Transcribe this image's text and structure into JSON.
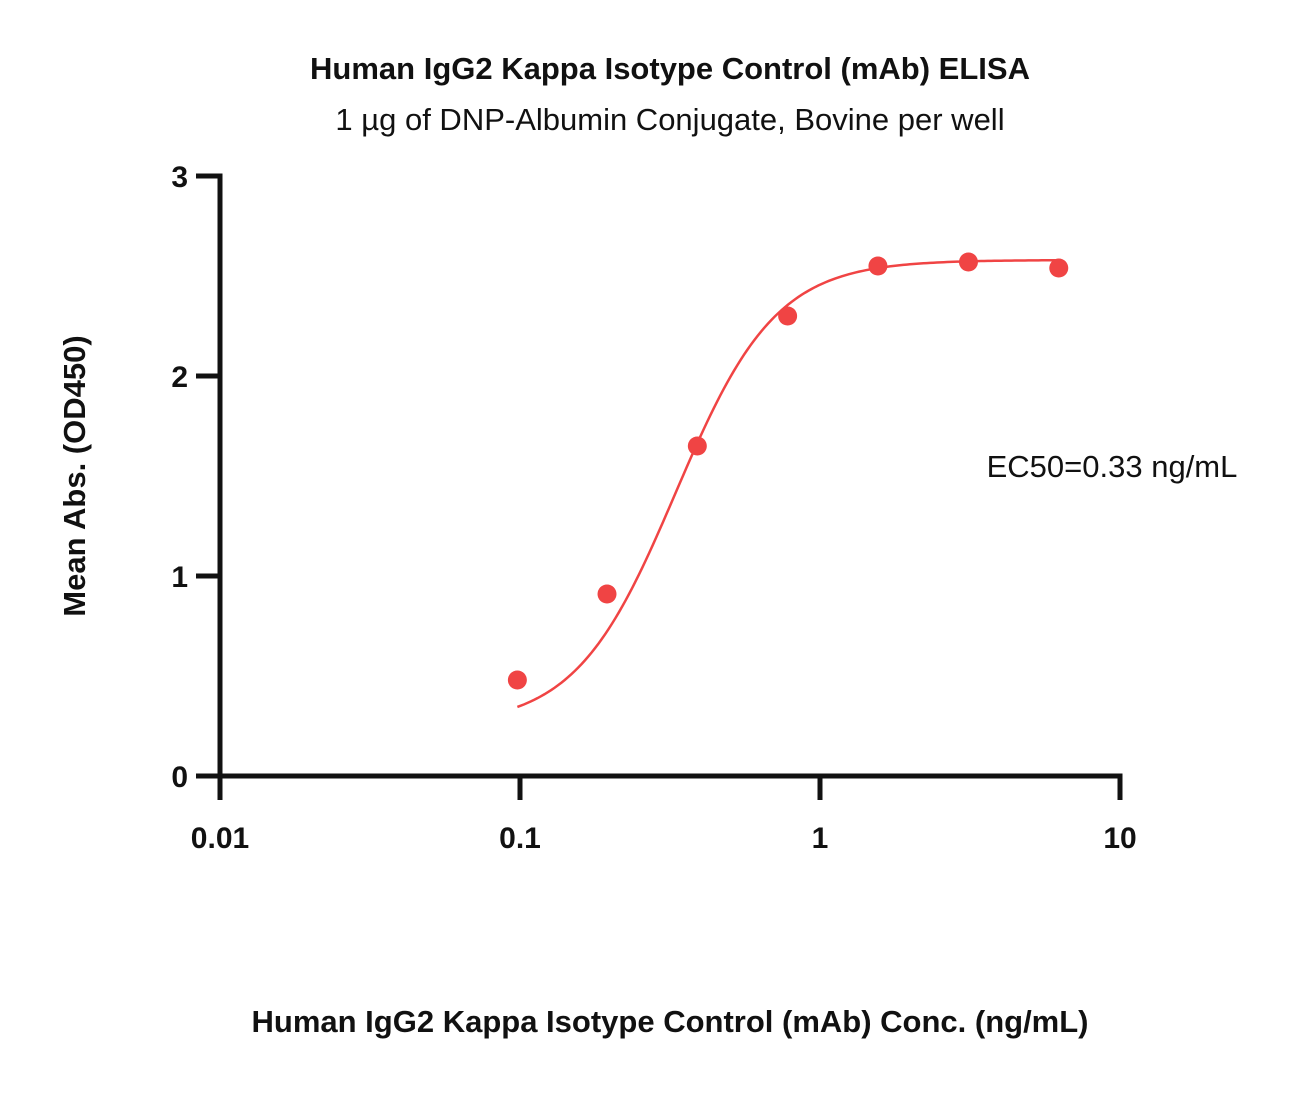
{
  "chart_data": {
    "type": "scatter",
    "title": "Human IgG2 Kappa Isotype Control (mAb) ELISA",
    "subtitle": "1 µg of DNP-Albumin Conjugate, Bovine per well",
    "xlabel": "Human IgG2 Kappa Isotype Control (mAb) Conc. (ng/mL)",
    "ylabel": "Mean Abs. (OD450)",
    "x_scale": "log",
    "xlim": [
      0.01,
      10
    ],
    "ylim": [
      0,
      3
    ],
    "x_ticks": [
      {
        "value": 0.01,
        "label": "0.01"
      },
      {
        "value": 0.1,
        "label": "0.1"
      },
      {
        "value": 1,
        "label": "1"
      },
      {
        "value": 10,
        "label": "10"
      }
    ],
    "y_ticks": [
      {
        "value": 0,
        "label": "0"
      },
      {
        "value": 1,
        "label": "1"
      },
      {
        "value": 2,
        "label": "2"
      },
      {
        "value": 3,
        "label": "3"
      }
    ],
    "grid": false,
    "series": [
      {
        "color": "#f04444",
        "x": [
          0.098,
          0.195,
          0.39,
          0.78,
          1.56,
          3.125,
          6.25
        ],
        "y": [
          0.48,
          0.91,
          1.65,
          2.3,
          2.55,
          2.57,
          2.54
        ],
        "fit": {
          "model": "4PL",
          "bottom": 0.25,
          "top": 2.58,
          "ec50": 0.33,
          "hill": 2.6
        }
      }
    ],
    "annotations": [
      {
        "text": "EC50=0.33 ng/mL"
      }
    ]
  }
}
